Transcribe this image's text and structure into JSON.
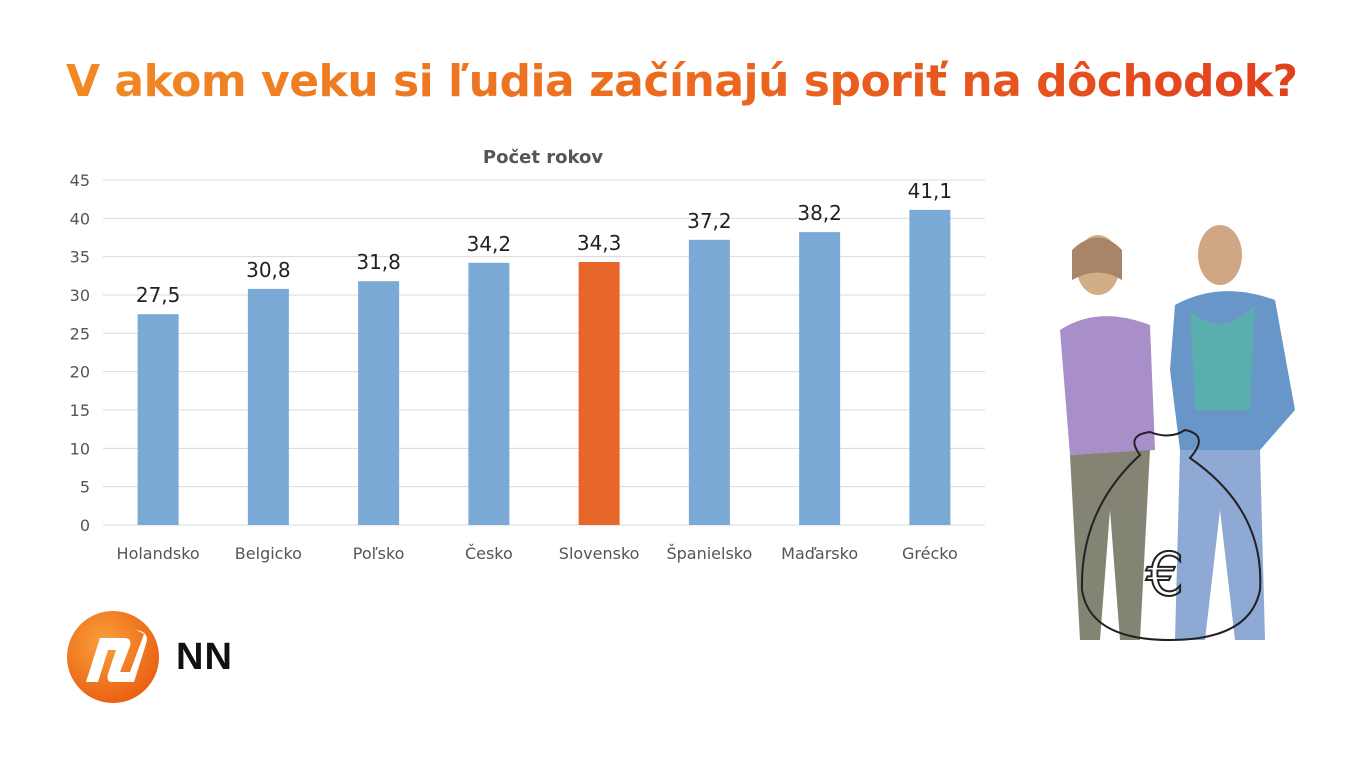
{
  "title": "V akom veku si ľudia začínajú sporiť na dôchodok?",
  "brand": {
    "name": "NN",
    "logo_color": "#f07a1a"
  },
  "chart_data": {
    "type": "bar",
    "title": "Počet rokov",
    "categories": [
      "Holandsko",
      "Belgicko",
      "Poľsko",
      "Česko",
      "Slovensko",
      "Španielsko",
      "Maďarsko",
      "Grécko"
    ],
    "values": [
      27.5,
      30.8,
      31.8,
      34.2,
      34.3,
      37.2,
      38.2,
      41.1
    ],
    "data_labels": [
      "27,5",
      "30,8",
      "31,8",
      "34,2",
      "34,3",
      "37,2",
      "38,2",
      "41,1"
    ],
    "ylim": [
      0,
      45
    ],
    "yticks": [
      0,
      5,
      10,
      15,
      20,
      25,
      30,
      35,
      40,
      45
    ],
    "grid": true,
    "colors": {
      "default": "#7aa9d6",
      "highlight": "#e8662a"
    },
    "highlight_category": "Slovensko"
  }
}
